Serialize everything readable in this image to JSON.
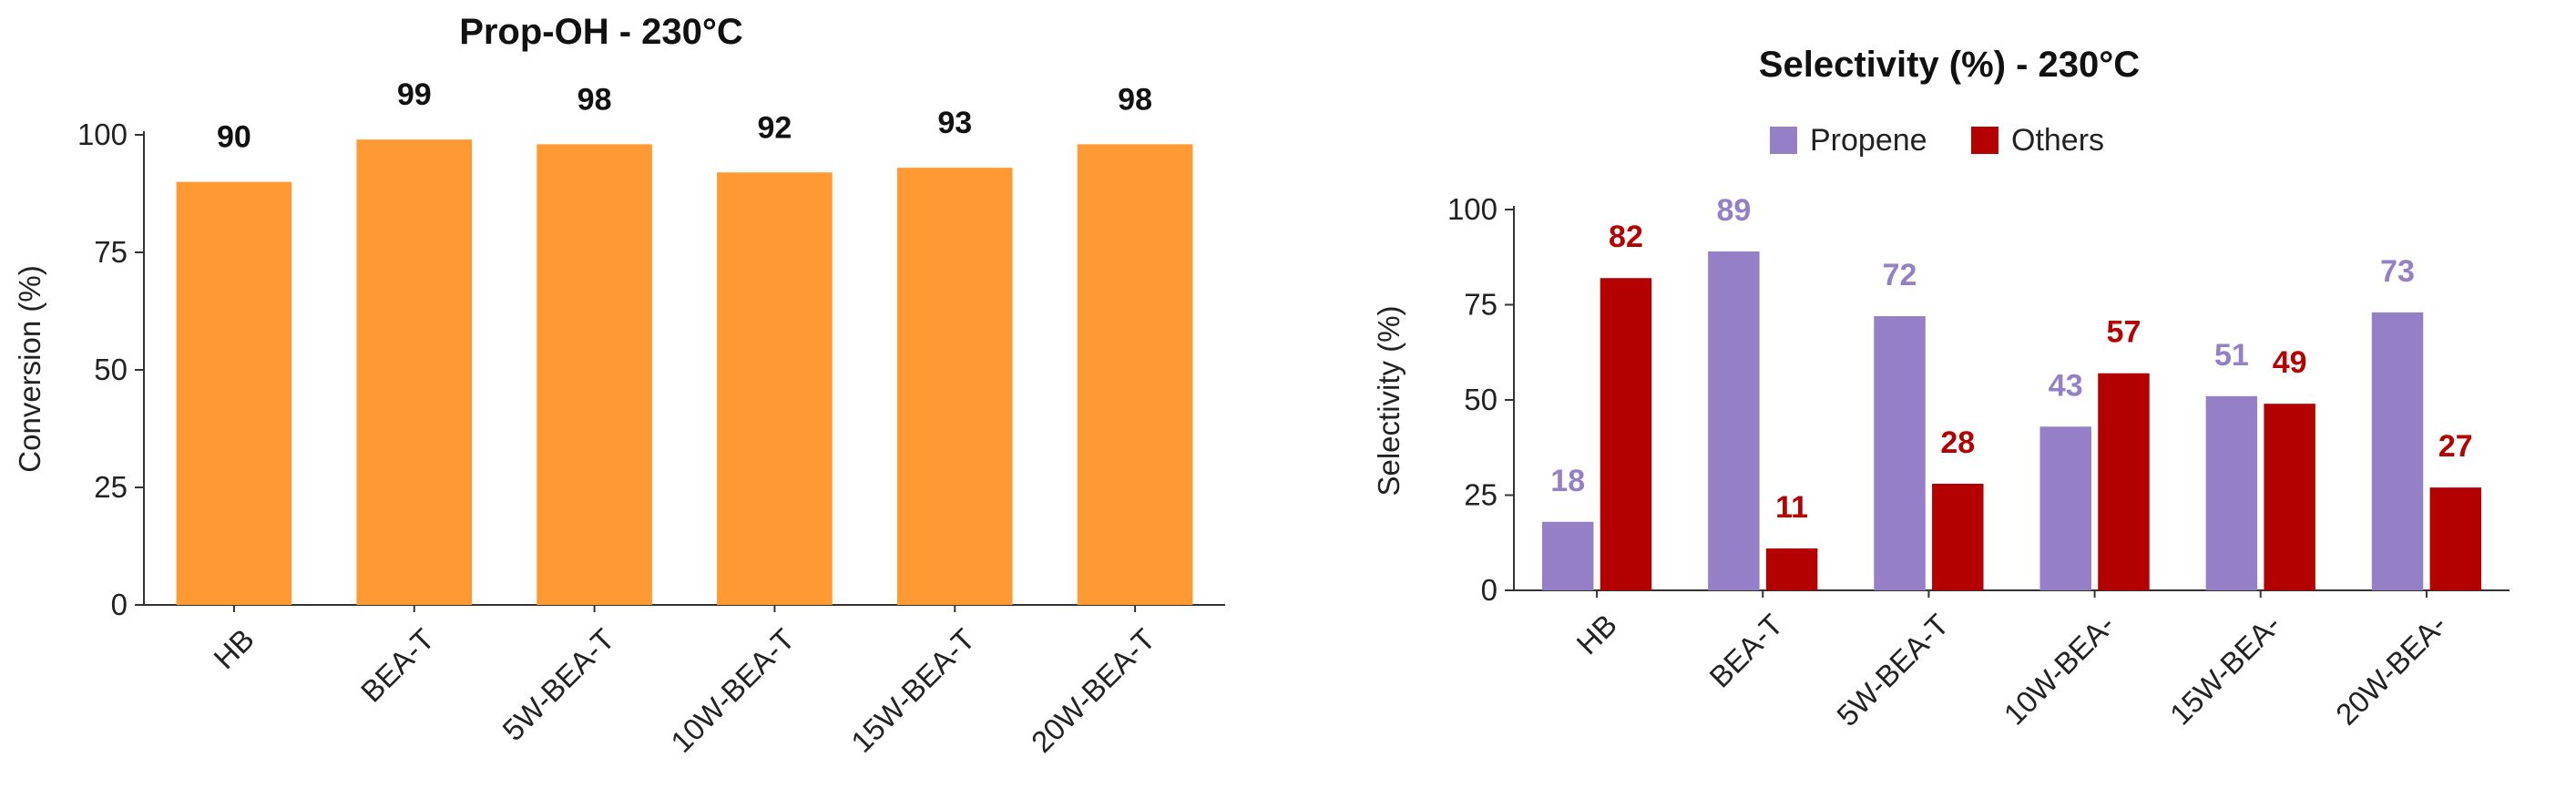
{
  "chart_data": [
    {
      "type": "bar",
      "title": "Prop-OH - 230°C",
      "xlabel": "",
      "ylabel": "Conversion (%)",
      "categories": [
        "HB",
        "BEA-T",
        "5W-BEA-T",
        "10W-BEA-T",
        "15W-BEA-T",
        "20W-BEA-T"
      ],
      "values": [
        90,
        99,
        98,
        92,
        93,
        98
      ],
      "ylim": [
        0,
        100
      ],
      "yticks": [
        0,
        25,
        50,
        75,
        100
      ],
      "bar_color": "#FF9933",
      "label_color": "#111111",
      "grid": false,
      "legend": "none"
    },
    {
      "type": "bar",
      "title": "Selectivity (%) - 230°C",
      "xlabel": "",
      "ylabel": "Selectivity (%)",
      "categories": [
        "HB",
        "BEA-T",
        "5W-BEA-T",
        "10W-BEA-",
        "15W-BEA-",
        "20W-BEA-"
      ],
      "series": [
        {
          "name": "Propene",
          "values": [
            18,
            89,
            72,
            43,
            51,
            73
          ],
          "color": "#9580C8"
        },
        {
          "name": "Others",
          "values": [
            82,
            11,
            28,
            57,
            49,
            27
          ],
          "color": "#B30000"
        }
      ],
      "ylim": [
        0,
        100
      ],
      "yticks": [
        0,
        25,
        50,
        75,
        100
      ],
      "grid": false,
      "legend": "top-center"
    }
  ]
}
